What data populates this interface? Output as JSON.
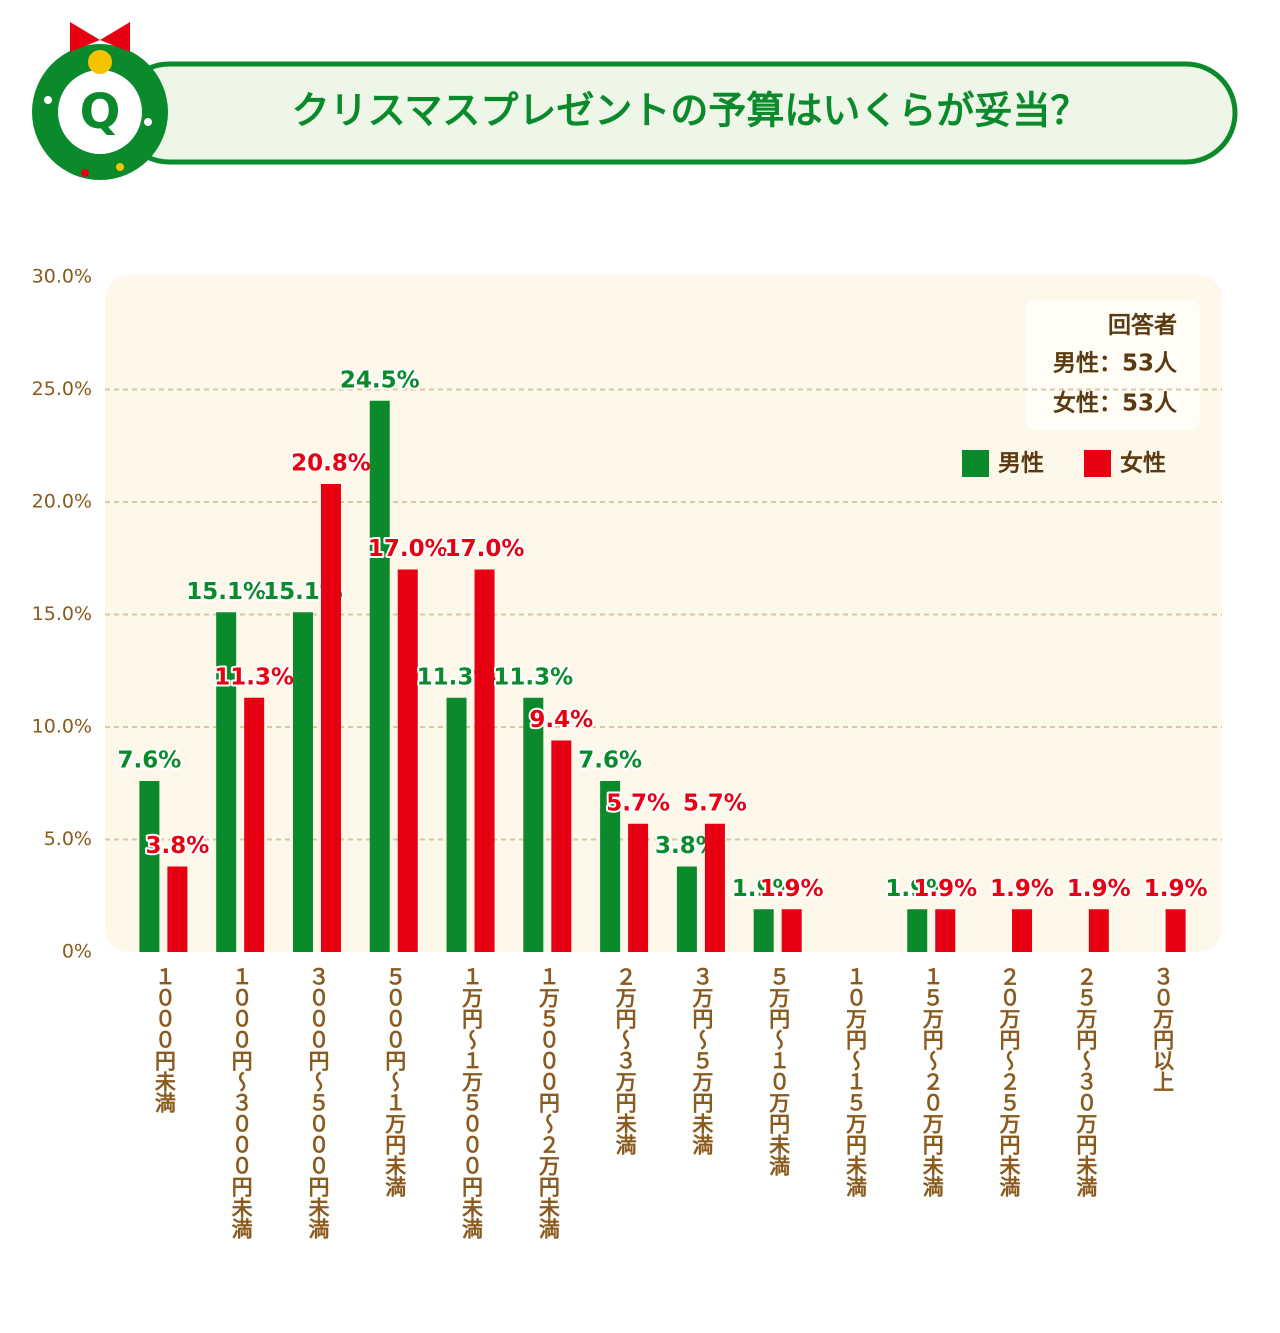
{
  "title": "クリスマスプレゼントの予算はいくらが妥当？",
  "icon_label": "Q",
  "chart_data": {
    "type": "bar",
    "categories": [
      "１０００円未満",
      "１０００円～３０００円未満",
      "３０００円～５０００円未満",
      "５０００円～１万円未満",
      "１万円～１万５０００円未満",
      "１万５０００円～２万円未満",
      "２万円～３万円未満",
      "３万円～５万円未満",
      "５万円～１０万円未満",
      "１０万円～１５万円未満",
      "１５万円～２０万円未満",
      "２０万円～２５万円未満",
      "２５万円～３０万円未満",
      "３０万円以上"
    ],
    "series": [
      {
        "name": "男性",
        "color": "#0b8a2c",
        "values": [
          7.6,
          15.1,
          15.1,
          24.5,
          11.3,
          11.3,
          7.6,
          3.8,
          1.9,
          0,
          1.9,
          0,
          0,
          0
        ],
        "value_labels": [
          "7.6%",
          "15.1%",
          "15.1%",
          "24.5%",
          "11.3%",
          "11.3%",
          "7.6%",
          "3.8%",
          "1.9%",
          null,
          "1.9%",
          null,
          null,
          null
        ]
      },
      {
        "name": "女性",
        "color": "#e60012",
        "values": [
          3.8,
          11.3,
          20.8,
          17.0,
          17.0,
          9.4,
          5.7,
          5.7,
          1.9,
          0,
          1.9,
          1.9,
          1.9,
          1.9
        ],
        "value_labels": [
          "3.8%",
          "11.3%",
          "20.8%",
          "17.0%",
          "17.0%",
          "9.4%",
          "5.7%",
          "5.7%",
          "1.9%",
          null,
          "1.9%",
          "1.9%",
          "1.9%",
          "1.9%"
        ]
      }
    ],
    "ylim": [
      0,
      30
    ],
    "yticks": [
      {
        "value": 0,
        "label": "0%"
      },
      {
        "value": 5,
        "label": "5.0%"
      },
      {
        "value": 10,
        "label": "10.0%"
      },
      {
        "value": 15,
        "label": "15.0%"
      },
      {
        "value": 20,
        "label": "20.0%"
      },
      {
        "value": 25,
        "label": "25.0%"
      },
      {
        "value": 30,
        "label": "30.0%"
      }
    ],
    "grid": true,
    "legend": "upper right",
    "annotations": [
      "回答者",
      "男性：53人",
      "女性：53人"
    ]
  }
}
